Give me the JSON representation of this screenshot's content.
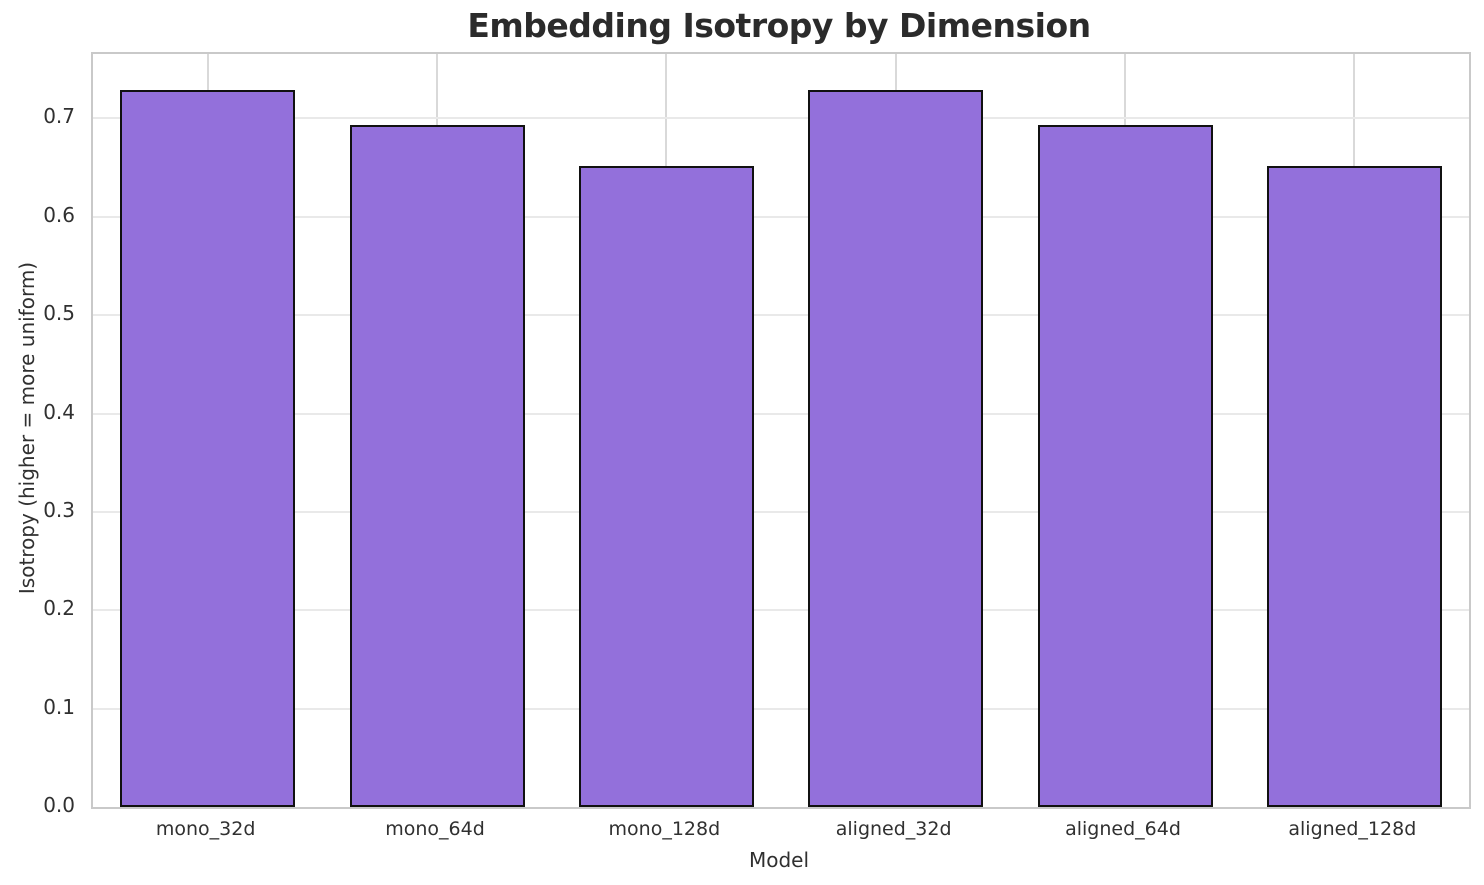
{
  "figure": {
    "background_color": "#ffffff",
    "text_color": "#303030",
    "title_color": "#2b2b2b"
  },
  "chart_data": {
    "type": "bar",
    "title": "Embedding Isotropy by Dimension",
    "xlabel": "Model",
    "ylabel": "Isotropy (higher = more uniform)",
    "categories": [
      "mono_32d",
      "mono_64d",
      "mono_128d",
      "aligned_32d",
      "aligned_64d",
      "aligned_128d"
    ],
    "values": [
      0.729,
      0.693,
      0.652,
      0.729,
      0.693,
      0.652
    ],
    "ylim": [
      0,
      0.7655
    ],
    "yticks": [
      0.0,
      0.1,
      0.2,
      0.3,
      0.4,
      0.5,
      0.6,
      0.7
    ],
    "ytick_labels": [
      "0.0",
      "0.1",
      "0.2",
      "0.3",
      "0.4",
      "0.5",
      "0.6",
      "0.7"
    ],
    "grid": true,
    "legend": false,
    "bar_color": "#9370DB",
    "bar_edge_color": "#111111",
    "grid_color_horizontal": "#e9e9e9",
    "grid_color_vertical": "#d9d9d9",
    "spine_color": "#c9c9c9"
  }
}
